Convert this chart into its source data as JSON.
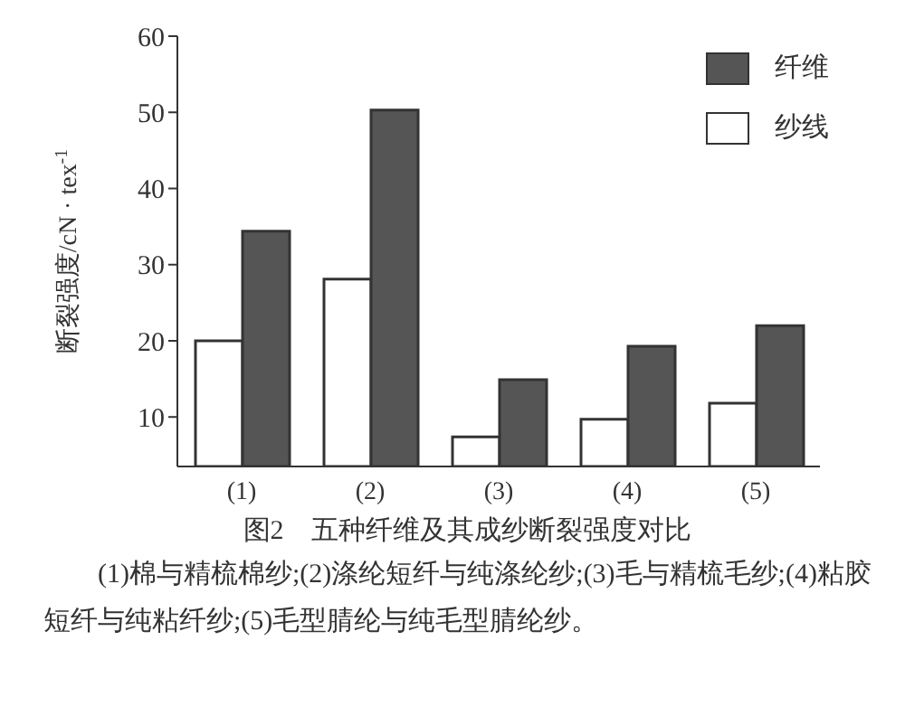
{
  "chart_data": {
    "type": "bar",
    "title": "图2　五种纤维及其成纱断裂强度对比",
    "ylabel": "断裂强度/cN · tex$^{-1}$",
    "categories": [
      "(1)",
      "(2)",
      "(3)",
      "(4)",
      "(5)"
    ],
    "series": [
      {
        "name": "纤维",
        "color": "#555555",
        "values": [
          34.4,
          50.3,
          14.9,
          19.3,
          22.0
        ]
      },
      {
        "name": "纱线",
        "color": "#ffffff",
        "values": [
          20.0,
          28.1,
          7.4,
          9.7,
          11.8
        ]
      }
    ],
    "ylim": [
      3.5,
      60
    ],
    "yticks": [
      10,
      20,
      30,
      40,
      50,
      60
    ],
    "grid": false,
    "legend": "top right",
    "annotations": [
      "(1)棉与精梳棉纱;(2)涤纶短纤与纯涤纶纱;(3)毛与精梳毛纱;(4)粘胶短纤与纯粘纤纱;(5)毛型腈纶与纯毛型腈纶纱。"
    ]
  }
}
